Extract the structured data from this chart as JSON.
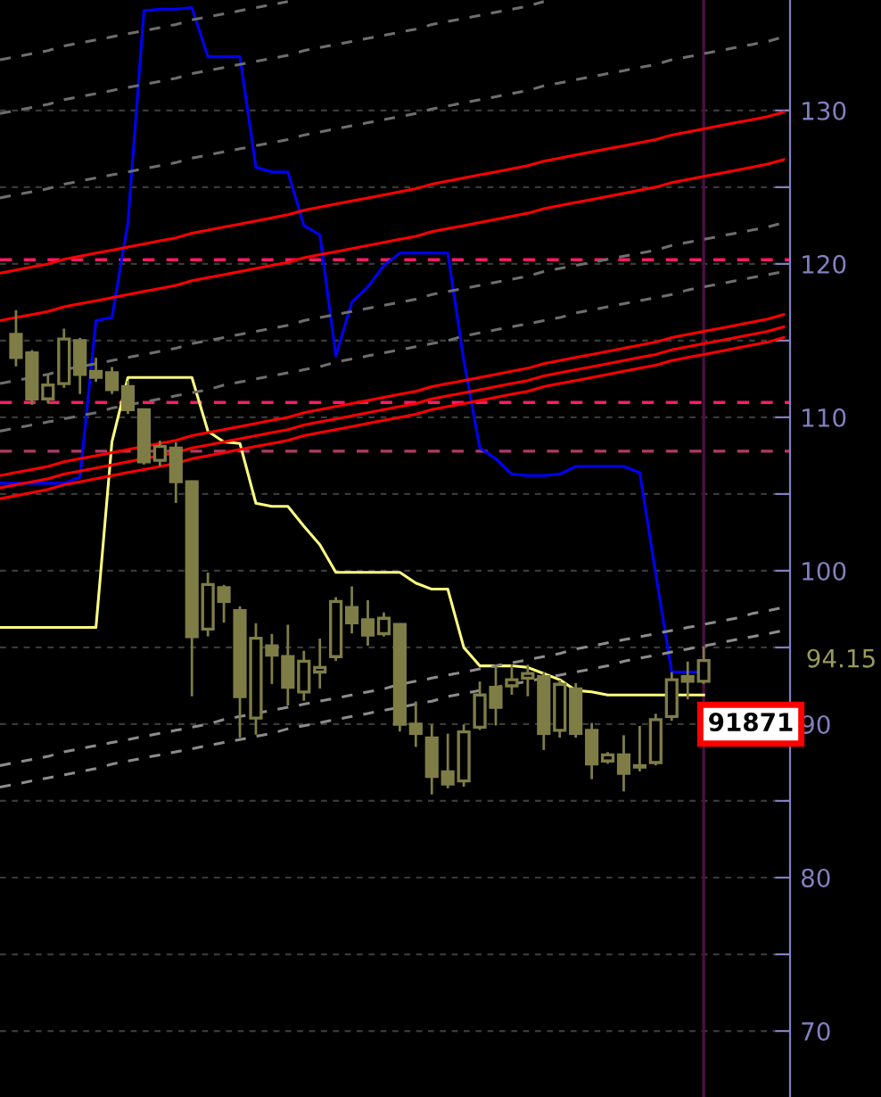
{
  "chart_data": {
    "type": "candlestick",
    "color": "#7f7d46",
    "categories": [
      null,
      null,
      null,
      null,
      null,
      null,
      null,
      null,
      null,
      null,
      null,
      null,
      null,
      null,
      null,
      null,
      null,
      null,
      null,
      null,
      null,
      null,
      null,
      null,
      null,
      null,
      null,
      null,
      null,
      null,
      null,
      null,
      null,
      null,
      null,
      null,
      null,
      null,
      null,
      null,
      null,
      null,
      null,
      null,
      null,
      null,
      null,
      null,
      null,
      null
    ],
    "ohlc": [
      null,
      [
        115.4,
        116.9,
        113.4,
        113.9
      ],
      [
        114.2,
        114.3,
        110.9,
        111.2
      ],
      [
        111.2,
        112.7,
        111.0,
        112.1
      ],
      [
        112.2,
        115.7,
        112.0,
        115.1
      ],
      [
        115.0,
        115.1,
        111.6,
        112.8
      ],
      [
        113.0,
        113.8,
        112.4,
        112.6
      ],
      [
        112.9,
        113.2,
        111.6,
        111.8
      ],
      [
        112.0,
        112.3,
        110.3,
        110.5
      ],
      [
        110.5,
        110.5,
        107.0,
        107.1
      ],
      [
        107.2,
        108.4,
        106.9,
        108.1
      ],
      [
        108.0,
        108.3,
        104.5,
        105.8
      ],
      [
        105.8,
        105.8,
        91.9,
        95.7
      ],
      [
        96.2,
        99.8,
        95.8,
        99.1
      ],
      [
        98.9,
        99.0,
        96.7,
        98.0
      ],
      [
        97.4,
        97.6,
        89.2,
        91.8
      ],
      [
        90.4,
        96.5,
        89.4,
        95.6
      ],
      [
        95.1,
        95.8,
        92.7,
        94.5
      ],
      [
        94.4,
        96.4,
        91.3,
        92.4
      ],
      [
        92.1,
        94.7,
        91.6,
        94.1
      ],
      [
        93.4,
        95.5,
        92.4,
        93.7
      ],
      [
        94.4,
        98.2,
        94.2,
        98.0
      ],
      [
        97.6,
        98.9,
        96.0,
        96.6
      ],
      [
        96.8,
        98.0,
        95.2,
        95.8
      ],
      [
        95.9,
        97.2,
        95.8,
        96.9
      ],
      [
        96.5,
        96.5,
        89.6,
        90.0
      ],
      [
        90.0,
        91.4,
        88.6,
        89.4
      ],
      [
        89.1,
        89.9,
        85.5,
        86.6
      ],
      [
        86.9,
        89.3,
        85.9,
        86.1
      ],
      [
        86.3,
        89.9,
        86.0,
        89.5
      ],
      [
        89.8,
        92.7,
        89.7,
        91.9
      ],
      [
        92.4,
        93.8,
        90.0,
        91.1
      ],
      [
        92.5,
        93.8,
        92.0,
        92.9
      ],
      [
        93.0,
        93.8,
        91.9,
        93.3
      ],
      [
        93.1,
        93.3,
        88.4,
        89.4
      ],
      [
        89.6,
        92.8,
        89.2,
        92.6
      ],
      [
        92.3,
        92.6,
        89.2,
        89.4
      ],
      [
        89.6,
        90.0,
        86.5,
        87.4
      ],
      [
        87.6,
        88.1,
        87.5,
        88.0
      ],
      [
        88.0,
        89.2,
        85.7,
        86.8
      ],
      [
        87.2,
        89.8,
        87.0,
        87.3
      ],
      [
        87.5,
        90.6,
        87.4,
        90.3
      ],
      [
        90.5,
        93.3,
        90.3,
        92.9
      ],
      [
        93.1,
        94.0,
        91.7,
        92.8
      ],
      [
        92.8,
        95.0,
        92.7,
        94.15
      ],
      null,
      null,
      null,
      null,
      null
    ],
    "series": [
      {
        "type": "line",
        "color": "#0000ff",
        "line_style": "solid",
        "values": [
          105.7,
          105.7,
          105.7,
          105.7,
          105.7,
          106.1,
          116.3,
          116.5,
          122.7,
          136.5,
          136.6,
          136.6,
          136.7,
          133.5,
          133.5,
          133.5,
          126.3,
          126.0,
          126.0,
          122.5,
          121.9,
          114.0,
          117.5,
          118.5,
          119.9,
          120.7,
          120.7,
          120.7,
          120.7,
          113.7,
          108.0,
          107.3,
          106.3,
          106.2,
          106.2,
          106.3,
          106.8,
          106.8,
          106.8,
          106.8,
          106.4,
          99.8,
          93.4,
          93.4,
          93.4,
          null,
          null,
          null,
          null,
          null
        ]
      },
      {
        "type": "line",
        "color": "#ffff80",
        "line_style": "solid",
        "values": [
          96.3,
          96.3,
          96.3,
          96.3,
          96.3,
          96.3,
          96.3,
          108.4,
          112.6,
          112.6,
          112.6,
          112.6,
          112.6,
          109.1,
          108.4,
          108.3,
          104.4,
          104.2,
          104.2,
          102.9,
          101.7,
          99.9,
          99.9,
          99.9,
          99.9,
          99.9,
          99.2,
          98.8,
          98.8,
          95.0,
          93.8,
          93.8,
          93.8,
          93.7,
          93.3,
          92.9,
          92.2,
          92.1,
          91.9,
          91.9,
          91.9,
          91.9,
          91.9,
          91.9,
          91.9,
          null,
          null,
          null,
          null,
          null
        ]
      },
      {
        "type": "line",
        "color": "#ff0000",
        "line_style": "solid",
        "values": [
          119.4,
          119.6,
          119.8,
          120.0,
          120.3,
          120.5,
          120.7,
          120.9,
          121.1,
          121.3,
          121.5,
          121.7,
          122.0,
          122.2,
          122.4,
          122.6,
          122.8,
          123.0,
          123.2,
          123.5,
          123.7,
          123.9,
          124.1,
          124.3,
          124.5,
          124.7,
          124.9,
          125.2,
          125.4,
          125.6,
          125.8,
          126.0,
          126.2,
          126.4,
          126.7,
          126.9,
          127.1,
          127.3,
          127.5,
          127.7,
          127.9,
          128.1,
          128.4,
          128.6,
          128.8,
          129.0,
          129.2,
          129.4,
          129.6,
          129.9
        ]
      },
      {
        "type": "line",
        "color": "#ff0000",
        "line_style": "solid",
        "values": [
          116.3,
          116.5,
          116.7,
          116.9,
          117.2,
          117.4,
          117.6,
          117.8,
          118.0,
          118.2,
          118.4,
          118.6,
          118.9,
          119.1,
          119.3,
          119.5,
          119.7,
          119.9,
          120.1,
          120.4,
          120.6,
          120.8,
          121.0,
          121.2,
          121.4,
          121.6,
          121.8,
          122.1,
          122.3,
          122.5,
          122.7,
          122.9,
          123.1,
          123.3,
          123.6,
          123.8,
          124.0,
          124.2,
          124.4,
          124.6,
          124.8,
          125.0,
          125.3,
          125.5,
          125.7,
          125.9,
          126.1,
          126.3,
          126.5,
          126.8
        ]
      },
      {
        "type": "line",
        "color": "#ff0000",
        "line_style": "solid",
        "values": [
          106.2,
          106.4,
          106.6,
          106.8,
          107.1,
          107.3,
          107.5,
          107.7,
          107.9,
          108.1,
          108.3,
          108.5,
          108.8,
          109.0,
          109.2,
          109.4,
          109.6,
          109.8,
          110.0,
          110.3,
          110.5,
          110.7,
          110.9,
          111.1,
          111.3,
          111.5,
          111.7,
          112.0,
          112.2,
          112.4,
          112.6,
          112.8,
          113.0,
          113.2,
          113.5,
          113.7,
          113.9,
          114.1,
          114.3,
          114.5,
          114.7,
          114.9,
          115.2,
          115.4,
          115.6,
          115.8,
          116.0,
          116.2,
          116.4,
          116.7
        ]
      },
      {
        "type": "line",
        "color": "#ff0000",
        "line_style": "solid",
        "values": [
          105.4,
          105.6,
          105.8,
          106.0,
          106.3,
          106.5,
          106.7,
          106.9,
          107.1,
          107.3,
          107.5,
          107.7,
          108.0,
          108.2,
          108.4,
          108.6,
          108.8,
          109.0,
          109.2,
          109.5,
          109.7,
          109.9,
          110.1,
          110.3,
          110.5,
          110.7,
          110.9,
          111.2,
          111.4,
          111.6,
          111.8,
          112.0,
          112.2,
          112.4,
          112.7,
          112.9,
          113.1,
          113.3,
          113.5,
          113.7,
          113.9,
          114.1,
          114.4,
          114.6,
          114.8,
          115.0,
          115.2,
          115.4,
          115.6,
          115.9
        ]
      },
      {
        "type": "line",
        "color": "#ff0000",
        "line_style": "solid",
        "values": [
          104.7,
          104.9,
          105.1,
          105.3,
          105.6,
          105.8,
          106.0,
          106.2,
          106.4,
          106.6,
          106.8,
          107.0,
          107.3,
          107.5,
          107.7,
          107.9,
          108.1,
          108.3,
          108.5,
          108.8,
          109.0,
          109.2,
          109.4,
          109.6,
          109.8,
          110.0,
          110.2,
          110.5,
          110.7,
          110.9,
          111.1,
          111.3,
          111.5,
          111.7,
          112.0,
          112.2,
          112.4,
          112.6,
          112.8,
          113.0,
          113.2,
          113.4,
          113.7,
          113.9,
          114.1,
          114.3,
          114.5,
          114.7,
          114.9,
          115.2
        ]
      },
      {
        "type": "line",
        "color": "#6e6e6e",
        "line_style": "dashed",
        "values": [
          133.3,
          133.5,
          133.7,
          133.9,
          134.2,
          134.4,
          134.6,
          134.8,
          135.0,
          135.2,
          135.4,
          135.6,
          135.9,
          136.1,
          136.3,
          136.5,
          136.7,
          136.9,
          137.1,
          null,
          null,
          null,
          null,
          null,
          null,
          null,
          null,
          null,
          null,
          null,
          null,
          null,
          null,
          null,
          null,
          null,
          null,
          null,
          null,
          null,
          null,
          null,
          null,
          null,
          null,
          null,
          null,
          null,
          null,
          null
        ]
      },
      {
        "type": "line",
        "color": "#6e6e6e",
        "line_style": "dashed",
        "values": [
          129.8,
          130.0,
          130.2,
          130.4,
          130.7,
          130.9,
          131.1,
          131.3,
          131.5,
          131.7,
          131.9,
          132.1,
          132.4,
          132.6,
          132.8,
          133.0,
          133.2,
          133.4,
          133.6,
          133.9,
          134.1,
          134.3,
          134.5,
          134.7,
          134.9,
          135.1,
          135.3,
          135.6,
          135.8,
          136.0,
          136.2,
          136.4,
          136.6,
          136.8,
          137.1,
          null,
          null,
          null,
          null,
          null,
          null,
          null,
          null,
          null,
          null,
          null,
          null,
          null,
          null,
          null
        ]
      },
      {
        "type": "line",
        "color": "#6e6e6e",
        "line_style": "dashed",
        "values": [
          124.3,
          124.5,
          124.7,
          124.9,
          125.2,
          125.4,
          125.6,
          125.8,
          126.0,
          126.2,
          126.4,
          126.6,
          126.9,
          127.1,
          127.3,
          127.5,
          127.7,
          127.9,
          128.1,
          128.4,
          128.6,
          128.8,
          129.0,
          129.2,
          129.4,
          129.6,
          129.8,
          130.1,
          130.3,
          130.5,
          130.7,
          130.9,
          131.1,
          131.3,
          131.6,
          131.8,
          132.0,
          132.2,
          132.4,
          132.6,
          132.8,
          133.0,
          133.3,
          133.5,
          133.7,
          133.9,
          134.1,
          134.3,
          134.5,
          134.8
        ]
      },
      {
        "type": "line",
        "color": "#6e6e6e",
        "line_style": "dashed",
        "values": [
          112.2,
          112.4,
          112.6,
          112.8,
          113.1,
          113.3,
          113.5,
          113.7,
          113.9,
          114.1,
          114.3,
          114.5,
          114.8,
          115.0,
          115.2,
          115.4,
          115.6,
          115.8,
          116.0,
          116.3,
          116.5,
          116.7,
          116.9,
          117.1,
          117.3,
          117.5,
          117.7,
          118.0,
          118.2,
          118.4,
          118.6,
          118.8,
          119.0,
          119.2,
          119.5,
          119.7,
          119.9,
          120.1,
          120.3,
          120.5,
          120.7,
          120.9,
          121.2,
          121.4,
          121.6,
          121.8,
          122.0,
          122.2,
          122.4,
          122.7
        ]
      },
      {
        "type": "line",
        "color": "#6e6e6e",
        "line_style": "dashed",
        "values": [
          109.1,
          109.3,
          109.5,
          109.7,
          109.9,
          110.1,
          110.3,
          110.6,
          110.8,
          111.0,
          111.2,
          111.4,
          111.6,
          111.8,
          112.1,
          112.3,
          112.5,
          112.7,
          112.9,
          113.1,
          113.3,
          113.6,
          113.8,
          114.0,
          114.2,
          114.4,
          114.6,
          114.8,
          115.0,
          115.3,
          115.5,
          115.7,
          115.9,
          116.1,
          116.3,
          116.5,
          116.8,
          117.0,
          117.2,
          117.4,
          117.6,
          117.8,
          118.0,
          118.3,
          118.5,
          118.7,
          118.9,
          119.1,
          119.3,
          119.5
        ]
      },
      {
        "type": "line",
        "color": "#8c8c8c",
        "line_style": "dashed",
        "values": [
          87.3,
          87.5,
          87.7,
          87.9,
          88.2,
          88.4,
          88.6,
          88.8,
          89.0,
          89.2,
          89.4,
          89.6,
          89.8,
          90.0,
          90.3,
          90.5,
          90.7,
          90.9,
          91.1,
          91.3,
          91.5,
          91.7,
          91.9,
          92.1,
          92.3,
          92.6,
          92.8,
          93.0,
          93.2,
          93.4,
          93.6,
          93.8,
          94.0,
          94.2,
          94.4,
          94.6,
          94.9,
          95.1,
          95.3,
          95.5,
          95.7,
          95.9,
          96.1,
          96.3,
          96.5,
          96.7,
          96.9,
          97.2,
          97.4,
          97.6
        ]
      },
      {
        "type": "line",
        "color": "#8c8c8c",
        "line_style": "dashed",
        "values": [
          85.9,
          86.1,
          86.3,
          86.5,
          86.7,
          86.9,
          87.1,
          87.4,
          87.6,
          87.8,
          88.0,
          88.2,
          88.4,
          88.6,
          88.8,
          89.0,
          89.2,
          89.4,
          89.7,
          89.9,
          90.1,
          90.3,
          90.5,
          90.7,
          90.9,
          91.1,
          91.3,
          91.5,
          91.8,
          92.0,
          92.2,
          92.4,
          92.6,
          92.8,
          93.0,
          93.2,
          93.4,
          93.6,
          93.8,
          94.1,
          94.3,
          94.5,
          94.7,
          94.9,
          95.1,
          95.3,
          95.5,
          95.7,
          95.9,
          96.1
        ]
      }
    ],
    "ref_lines": [
      {
        "axis": "y",
        "value": 120.27,
        "color": "#ff1a66",
        "line_style": "dashed"
      },
      {
        "axis": "y",
        "value": 110.97,
        "color": "#ff1a66",
        "line_style": "dashed"
      },
      {
        "axis": "y",
        "value": 107.79,
        "color": "#b03a66",
        "line_style": "dashed"
      }
    ],
    "ylim": [
      65.7,
      137.2
    ],
    "yticks": [
      70,
      {
        "value": 75,
        "label": null
      },
      80,
      {
        "value": 85,
        "label": null
      },
      90,
      {
        "value": 95,
        "label": null
      },
      100,
      {
        "value": 105,
        "label": null
      },
      110,
      {
        "value": 115,
        "label": null
      },
      120,
      {
        "value": 125,
        "label": null
      },
      130
    ],
    "tick_labels": "y",
    "grid": "y",
    "annotations": [
      "94.15",
      "91871"
    ]
  }
}
